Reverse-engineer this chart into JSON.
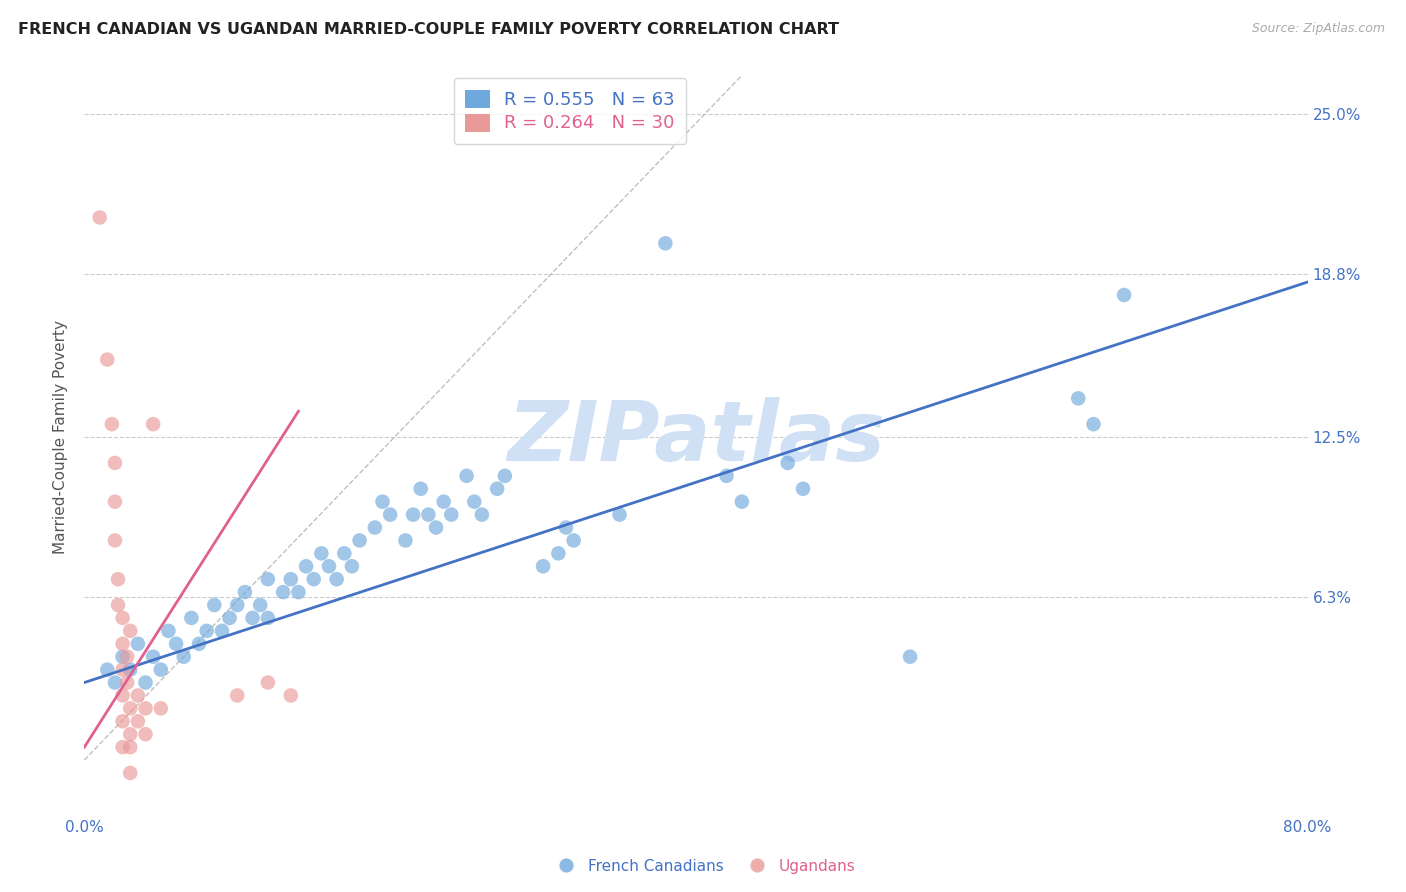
{
  "title": "FRENCH CANADIAN VS UGANDAN MARRIED-COUPLE FAMILY POVERTY CORRELATION CHART",
  "source": "Source: ZipAtlas.com",
  "ylabel": "Married-Couple Family Poverty",
  "xlim": [
    0.0,
    0.8
  ],
  "ylim": [
    -0.02,
    0.27
  ],
  "xticks": [
    0.0,
    0.8
  ],
  "xticklabels": [
    "0.0%",
    "80.0%"
  ],
  "ytick_values": [
    0.063,
    0.125,
    0.188,
    0.25
  ],
  "ytick_labels": [
    "6.3%",
    "12.5%",
    "18.8%",
    "25.0%"
  ],
  "blue_color": "#6fa8dc",
  "pink_color": "#ea9999",
  "blue_line_color": "#4472c4",
  "pink_line_color": "#e06090",
  "blue_R": 0.555,
  "blue_N": 63,
  "pink_R": 0.264,
  "pink_N": 30,
  "watermark": "ZIPatlas",
  "watermark_color": "#d0e0f5",
  "legend_label_blue": "French Canadians",
  "legend_label_pink": "Ugandans",
  "blue_scatter": [
    [
      0.015,
      0.035
    ],
    [
      0.02,
      0.03
    ],
    [
      0.025,
      0.04
    ],
    [
      0.03,
      0.035
    ],
    [
      0.035,
      0.045
    ],
    [
      0.04,
      0.03
    ],
    [
      0.045,
      0.04
    ],
    [
      0.05,
      0.035
    ],
    [
      0.055,
      0.05
    ],
    [
      0.06,
      0.045
    ],
    [
      0.065,
      0.04
    ],
    [
      0.07,
      0.055
    ],
    [
      0.075,
      0.045
    ],
    [
      0.08,
      0.05
    ],
    [
      0.085,
      0.06
    ],
    [
      0.09,
      0.05
    ],
    [
      0.095,
      0.055
    ],
    [
      0.1,
      0.06
    ],
    [
      0.105,
      0.065
    ],
    [
      0.11,
      0.055
    ],
    [
      0.115,
      0.06
    ],
    [
      0.12,
      0.055
    ],
    [
      0.12,
      0.07
    ],
    [
      0.13,
      0.065
    ],
    [
      0.135,
      0.07
    ],
    [
      0.14,
      0.065
    ],
    [
      0.145,
      0.075
    ],
    [
      0.15,
      0.07
    ],
    [
      0.155,
      0.08
    ],
    [
      0.16,
      0.075
    ],
    [
      0.165,
      0.07
    ],
    [
      0.17,
      0.08
    ],
    [
      0.175,
      0.075
    ],
    [
      0.18,
      0.085
    ],
    [
      0.19,
      0.09
    ],
    [
      0.195,
      0.1
    ],
    [
      0.2,
      0.095
    ],
    [
      0.21,
      0.085
    ],
    [
      0.215,
      0.095
    ],
    [
      0.22,
      0.105
    ],
    [
      0.225,
      0.095
    ],
    [
      0.23,
      0.09
    ],
    [
      0.235,
      0.1
    ],
    [
      0.24,
      0.095
    ],
    [
      0.25,
      0.11
    ],
    [
      0.255,
      0.1
    ],
    [
      0.26,
      0.095
    ],
    [
      0.27,
      0.105
    ],
    [
      0.275,
      0.11
    ],
    [
      0.3,
      0.075
    ],
    [
      0.31,
      0.08
    ],
    [
      0.315,
      0.09
    ],
    [
      0.32,
      0.085
    ],
    [
      0.35,
      0.095
    ],
    [
      0.38,
      0.2
    ],
    [
      0.42,
      0.11
    ],
    [
      0.43,
      0.1
    ],
    [
      0.46,
      0.115
    ],
    [
      0.47,
      0.105
    ],
    [
      0.54,
      0.04
    ],
    [
      0.65,
      0.14
    ],
    [
      0.66,
      0.13
    ],
    [
      0.68,
      0.18
    ]
  ],
  "pink_scatter": [
    [
      0.01,
      0.21
    ],
    [
      0.015,
      0.155
    ],
    [
      0.018,
      0.13
    ],
    [
      0.02,
      0.115
    ],
    [
      0.02,
      0.1
    ],
    [
      0.02,
      0.085
    ],
    [
      0.022,
      0.07
    ],
    [
      0.022,
      0.06
    ],
    [
      0.025,
      0.055
    ],
    [
      0.025,
      0.045
    ],
    [
      0.025,
      0.035
    ],
    [
      0.025,
      0.025
    ],
    [
      0.025,
      0.015
    ],
    [
      0.025,
      0.005
    ],
    [
      0.028,
      0.03
    ],
    [
      0.028,
      0.04
    ],
    [
      0.03,
      0.05
    ],
    [
      0.03,
      0.02
    ],
    [
      0.03,
      0.01
    ],
    [
      0.03,
      0.005
    ],
    [
      0.03,
      -0.005
    ],
    [
      0.035,
      0.015
    ],
    [
      0.035,
      0.025
    ],
    [
      0.04,
      0.02
    ],
    [
      0.04,
      0.01
    ],
    [
      0.045,
      0.13
    ],
    [
      0.05,
      0.02
    ],
    [
      0.1,
      0.025
    ],
    [
      0.12,
      0.03
    ],
    [
      0.135,
      0.025
    ]
  ],
  "diag_line": [
    [
      0.0,
      0.0
    ],
    [
      0.43,
      0.265
    ]
  ]
}
